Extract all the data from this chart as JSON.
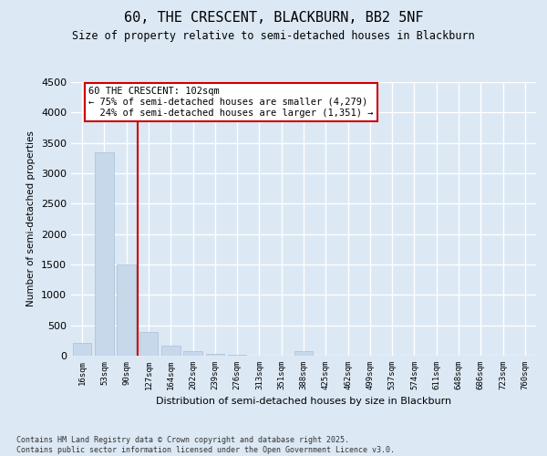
{
  "title_line1": "60, THE CRESCENT, BLACKBURN, BB2 5NF",
  "title_line2": "Size of property relative to semi-detached houses in Blackburn",
  "xlabel": "Distribution of semi-detached houses by size in Blackburn",
  "ylabel": "Number of semi-detached properties",
  "categories": [
    "16sqm",
    "53sqm",
    "90sqm",
    "127sqm",
    "164sqm",
    "202sqm",
    "239sqm",
    "276sqm",
    "313sqm",
    "351sqm",
    "388sqm",
    "425sqm",
    "462sqm",
    "499sqm",
    "537sqm",
    "574sqm",
    "611sqm",
    "648sqm",
    "686sqm",
    "723sqm",
    "760sqm"
  ],
  "values": [
    205,
    3350,
    1500,
    385,
    165,
    80,
    35,
    10,
    5,
    2,
    75,
    2,
    1,
    0,
    0,
    0,
    0,
    0,
    0,
    0,
    0
  ],
  "bar_color": "#c8d8eb",
  "bar_edge_color": "#a8c0d8",
  "vline_x": 2.5,
  "vline_color": "#cc0000",
  "ann_line1": "60 THE CRESCENT: 102sqm",
  "ann_line2": "← 75% of semi-detached houses are smaller (4,279)",
  "ann_line3": "  24% of semi-detached houses are larger (1,351) →",
  "ann_box_color": "#cc0000",
  "ylim_max": 4500,
  "yticks": [
    0,
    500,
    1000,
    1500,
    2000,
    2500,
    3000,
    3500,
    4000,
    4500
  ],
  "background_color": "#dce8f4",
  "grid_color": "#ffffff",
  "footer_text": "Contains HM Land Registry data © Crown copyright and database right 2025.\nContains public sector information licensed under the Open Government Licence v3.0."
}
